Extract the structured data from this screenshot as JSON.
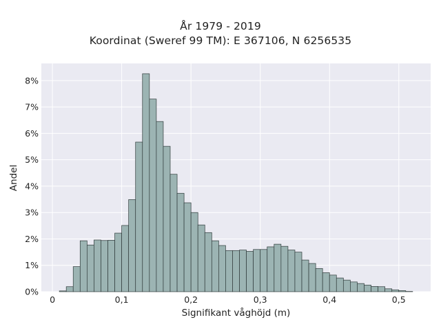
{
  "chart_data": {
    "type": "bar",
    "title": "År 1979 - 2019",
    "subtitle": "Koordinat (Sweref 99 TM): E 367106, N 6256535",
    "xlabel": "Signifikant våghöjd (m)",
    "ylabel": "Andel",
    "xlim": [
      -0.016,
      0.546
    ],
    "ylim": [
      0,
      0.0865
    ],
    "grid": true,
    "bin_width": 0.01,
    "bin_start": 0.01,
    "x_ticks": [
      0,
      0.1,
      0.2,
      0.3,
      0.4,
      0.5
    ],
    "x_tick_labels": [
      "0",
      "0,1",
      "0,2",
      "0,3",
      "0,4",
      "0,5"
    ],
    "y_ticks": [
      0,
      0.01,
      0.02,
      0.03,
      0.04,
      0.05,
      0.06,
      0.07,
      0.08
    ],
    "y_tick_labels": [
      "0%",
      "1%",
      "2%",
      "3%",
      "4%",
      "5%",
      "6%",
      "7%",
      "8%"
    ],
    "values": [
      0.0003,
      0.0019,
      0.0095,
      0.0193,
      0.0177,
      0.0196,
      0.0194,
      0.0195,
      0.0222,
      0.0251,
      0.0349,
      0.0567,
      0.0826,
      0.073,
      0.0645,
      0.0551,
      0.0445,
      0.0373,
      0.0337,
      0.03,
      0.0253,
      0.0224,
      0.0193,
      0.0175,
      0.0156,
      0.0156,
      0.0158,
      0.0153,
      0.016,
      0.016,
      0.017,
      0.018,
      0.0172,
      0.0158,
      0.015,
      0.012,
      0.0107,
      0.0088,
      0.0072,
      0.0063,
      0.0052,
      0.0044,
      0.0037,
      0.0031,
      0.0025,
      0.002,
      0.0019,
      0.0011,
      0.0007,
      0.0004,
      0.0001
    ],
    "colors": {
      "bar_fill": "#9cb4b3",
      "bar_stroke": "#2f3a3a",
      "plot_bg": "#eaeaf2",
      "grid": "#ffffff"
    }
  }
}
